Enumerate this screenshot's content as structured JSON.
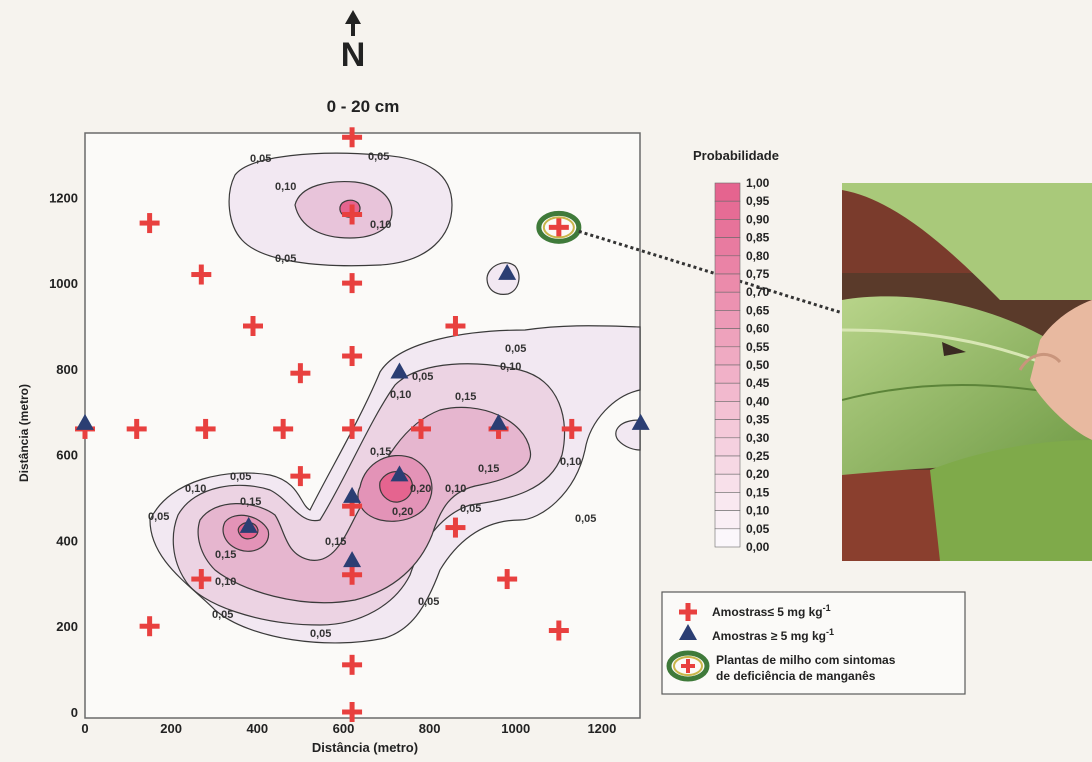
{
  "north_arrow": {
    "label": "N"
  },
  "map": {
    "title": "0 - 20 cm",
    "xlabel": "Distância (metro)",
    "ylabel": "Distância (metro)",
    "x_ticks": [
      "0",
      "200",
      "400",
      "600",
      "800",
      "1000",
      "1200"
    ],
    "y_ticks": [
      "0",
      "200",
      "400",
      "600",
      "800",
      "1000",
      "1200"
    ],
    "xlim": [
      0,
      1300
    ],
    "ylim": [
      0,
      1350
    ]
  },
  "contour_labels": [
    "0,05",
    "0,10",
    "0,15",
    "0,20"
  ],
  "samples_low": [
    [
      620,
      1340
    ],
    [
      150,
      1140
    ],
    [
      270,
      1020
    ],
    [
      620,
      1000
    ],
    [
      390,
      900
    ],
    [
      860,
      900
    ],
    [
      620,
      830
    ],
    [
      500,
      790
    ],
    [
      0,
      660
    ],
    [
      120,
      660
    ],
    [
      280,
      660
    ],
    [
      460,
      660
    ],
    [
      620,
      660
    ],
    [
      780,
      660
    ],
    [
      960,
      660
    ],
    [
      1130,
      660
    ],
    [
      500,
      550
    ],
    [
      620,
      480
    ],
    [
      860,
      430
    ],
    [
      270,
      310
    ],
    [
      620,
      320
    ],
    [
      980,
      310
    ],
    [
      150,
      200
    ],
    [
      1100,
      190
    ],
    [
      620,
      110
    ],
    [
      620,
      0
    ],
    [
      620,
      1160
    ],
    [
      1100,
      1130
    ]
  ],
  "samples_high": [
    [
      980,
      1010
    ],
    [
      730,
      780
    ],
    [
      0,
      660
    ],
    [
      1290,
      660
    ],
    [
      960,
      660
    ],
    [
      730,
      540
    ],
    [
      620,
      490
    ],
    [
      380,
      420
    ],
    [
      620,
      340
    ]
  ],
  "highlighted_sample": [
    1100,
    1130
  ],
  "legend": {
    "title": "Probabilidade",
    "scale_labels": [
      "1,00",
      "0,95",
      "0,90",
      "0,85",
      "0,80",
      "0,75",
      "0,70",
      "0,65",
      "0,60",
      "0,55",
      "0,50",
      "0,45",
      "0,40",
      "0,35",
      "0,30",
      "0,25",
      "0,20",
      "0,15",
      "0,10",
      "0,05",
      "0,00"
    ],
    "samples_low_label": "Amostras≤ 5 mg kg",
    "samples_high_label": "Amostras ≥ 5 mg kg",
    "unit_sup": "-1",
    "plants_label_1": "Plantas de milho com sintomas",
    "plants_label_2": "de deficiência de manganês"
  },
  "colors": {
    "low_sample": "#e8403f",
    "high_sample": "#2b3e73",
    "band_high": "#e5648f",
    "band_low": "#f1e4f0",
    "highlight_ring": "#3f7a3a"
  }
}
